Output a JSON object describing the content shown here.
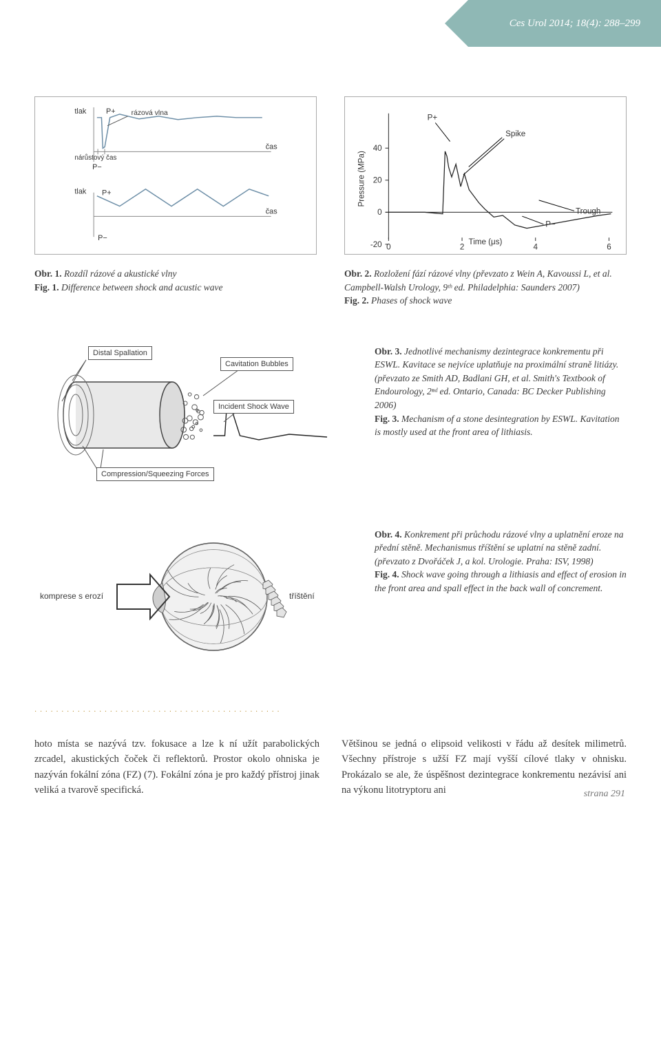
{
  "header": {
    "journal": "Ces Urol 2014; 18(4): 288–299"
  },
  "fig1": {
    "panelA": {
      "ylabel": "tlak",
      "xlabel": "čas",
      "Pplus": "P+",
      "Pminus": "P−",
      "waveLabel": "rázová vlna",
      "riseLabel": "nárůstový čas",
      "shock_x": [
        5,
        12,
        14,
        17,
        25,
        40,
        70,
        100,
        130,
        160,
        190,
        220,
        260
      ],
      "shock_y": [
        50,
        50,
        5,
        7,
        50,
        55,
        48,
        52,
        47,
        50,
        52,
        50,
        50
      ],
      "lineColor": "#6b8da6",
      "axisColor": "#888"
    },
    "panelB": {
      "ylabel": "tlak",
      "xlabel": "čas",
      "Pplus": "P+",
      "Pminus": "P−",
      "ac_x": [
        5,
        40,
        80,
        120,
        160,
        200,
        240,
        270
      ],
      "ac_y": [
        30,
        15,
        40,
        15,
        40,
        15,
        40,
        30
      ],
      "lineColor": "#6b8da6",
      "axisColor": "#888"
    },
    "caption": {
      "obr": "Obr. 1.",
      "cz": "Rozdíl rázové a akustické vlny",
      "fig": "Fig. 1.",
      "en": "Difference between shock and acustic wave"
    }
  },
  "fig2": {
    "ylabel": "Pressure (MPa)",
    "xlabel": "Time (μs)",
    "yticks": [
      -20,
      0,
      20,
      40
    ],
    "xticks": [
      0,
      2,
      4,
      6
    ],
    "Pplus": "P+",
    "Pminus": "P−",
    "spike": "Spike",
    "trough": "Trough",
    "trace_x": [
      0,
      30,
      60,
      90,
      94,
      97,
      100,
      105,
      112,
      120,
      126,
      134,
      150,
      160,
      175,
      190,
      210,
      230,
      260,
      290,
      320,
      350,
      370
    ],
    "trace_y": [
      0,
      0,
      0,
      1,
      -38,
      -35,
      -28,
      -22,
      -30,
      -16,
      -24,
      -14,
      -6,
      -2,
      3,
      2,
      8,
      10,
      8,
      6,
      4,
      2,
      1
    ],
    "lineColor": "#222",
    "axisColor": "#222",
    "caption": {
      "obr": "Obr. 2.",
      "cz": "Rozložení fází rázové vlny (převzato z Wein A, Kavoussi L, et al. Campbell-Walsh Urology, 9ᵗʰ ed. Philadelphia: Saunders 2007)",
      "fig": "Fig. 2.",
      "en": "Phases of shock wave"
    }
  },
  "fig3": {
    "labels": {
      "spall": "Distal Spallation",
      "cav": "Cavitation Bubbles",
      "inc": "Incident Shock Wave",
      "comp": "Compression/Squeezing Forces"
    },
    "wave_x": [
      0,
      15,
      18,
      22,
      35,
      60,
      100,
      150
    ],
    "wave_y": [
      0,
      0,
      -50,
      -45,
      0,
      6,
      -2,
      2
    ],
    "caption": {
      "obr": "Obr. 3.",
      "cz": "Jednotlivé mechanismy dezintegrace konkrementu při ESWL. Kavitace se nejvíce uplatňuje na proximální straně litiázy. (převzato ze Smith AD, Badlani GH, et al. Smith's Textbook of Endourology, 2ⁿᵈ ed. Ontario, Canada: BC Decker Publishing 2006)",
      "fig": "Fig. 3.",
      "en": "Mechanism of a stone desintegration by ESWL. Kavitation is mostly used at the front area of lithiasis."
    }
  },
  "fig4": {
    "left": "komprese s erozí",
    "right": "tříštění",
    "caption": {
      "obr": "Obr. 4.",
      "cz": "Konkrement při průchodu rázové vlny a uplatnění eroze na přední stěně. Mechanismus tříštění se uplatní na stěně zadní. (převzato z Dvořáček J, a kol. Urologie. Praha: ISV, 1998)",
      "fig": "Fig. 4.",
      "en": "Shock wave going through a lithiasis and effect of erosion in the front area and spall effect in the back wall of concrement."
    }
  },
  "body": {
    "col1": "hoto místa se nazývá tzv. fokusace a lze k ní užít parabolických zrcadel, akustických čoček či reflektorů. Prostor okolo ohniska je nazýván fokální zóna (FZ) (7). Fokální zóna je pro každý přístroj jinak veliká a tvarově specifická.",
    "col2": "Většinou se jedná o elipsoid velikosti v řádu až desítek milimetrů. Všechny přístroje s užší FZ mají vyšší cílové tlaky v ohnisku. Prokázalo se ale, že úspěšnost dezintegrace konkrementu nezávisí ani na výkonu litotryptoru ani"
  },
  "pageNumber": "strana 291"
}
